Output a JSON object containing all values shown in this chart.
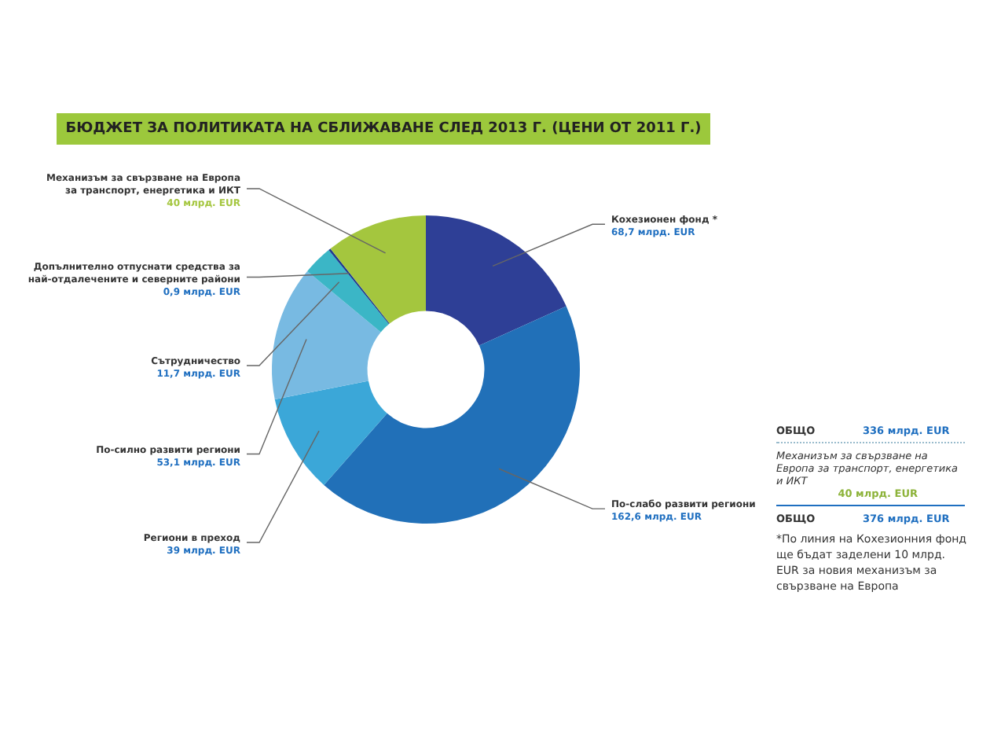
{
  "chart_data": {
    "type": "donut",
    "title": "БЮДЖЕТ ЗА ПОЛИТИКАТА НА СБЛИЖАВАНЕ СЛЕД 2013 Г. (ЦЕНИ ОТ 2011 Г.)",
    "categories": [
      "Кохезионен фонд *",
      "По-слабо развити региони",
      "Региони в преход",
      "По-силно развити региони",
      "Сътрудничество",
      "Допълнително отпуснати средства за най-отдалечените и северните райони",
      "Механизъм за свързване на Европа за транспорт, енергетика и ИКТ"
    ],
    "values": [
      68.7,
      162.6,
      39,
      53.1,
      11.7,
      0.9,
      40
    ],
    "value_labels": [
      "68,7 млрд. EUR",
      "162,6 млрд. EUR",
      "39 млрд. EUR",
      "53,1 млрд. EUR",
      "11,7 млрд. EUR",
      "0,9 млрд. EUR",
      "40 млрд. EUR"
    ],
    "colors": [
      "#2e3f96",
      "#2170b8",
      "#3ba7d8",
      "#78bae2",
      "#3bb6c6",
      "#1f3c8f",
      "#a4c63e"
    ],
    "legend": false,
    "annotations": [
      "ОБЩО",
      "336 млрд. EUR",
      "Механизъм за свързване на Европа за транспорт, енергетика и ИКТ",
      "40 млрд. EUR",
      "ОБЩО",
      "376 млрд. EUR",
      "*По линия на Кохезионния фонд ще бъдат заделени 10 млрд. EUR за новия механизъм за свързване на Европа"
    ]
  }
}
